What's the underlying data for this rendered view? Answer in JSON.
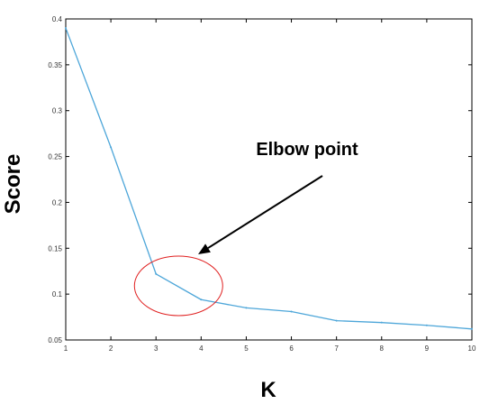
{
  "chart_data": {
    "type": "line",
    "title": "",
    "xlabel": "K",
    "ylabel": "Score",
    "x": [
      1,
      2,
      3,
      4,
      5,
      6,
      7,
      8,
      9,
      10
    ],
    "series": [
      {
        "values": [
          0.39,
          0.26,
          0.122,
          0.094,
          0.085,
          0.081,
          0.071,
          0.069,
          0.066,
          0.062
        ]
      }
    ],
    "xlim": [
      1,
      10
    ],
    "ylim": [
      0.05,
      0.4
    ],
    "xticks": [
      1,
      2,
      3,
      4,
      5,
      6,
      7,
      8,
      9,
      10
    ],
    "xtick_labels": [
      "1",
      "2",
      "3",
      "4",
      "5",
      "6",
      "7",
      "8",
      "9",
      "10"
    ],
    "yticks": [
      0.05,
      0.1,
      0.15,
      0.2,
      0.25,
      0.3,
      0.35,
      0.4
    ],
    "ytick_labels": [
      "0.05",
      "0.1",
      "0.15",
      "0.2",
      "0.25",
      "0.3",
      "0.35",
      "0.4"
    ],
    "grid": false,
    "legend": "none",
    "colors": {
      "line": "#4da6d9",
      "ellipse": "#e02020",
      "arrow": "#000000",
      "axes": "#000000"
    },
    "annotation": {
      "text": "Elbow point",
      "highlight_x": 3.5,
      "highlight_y": 0.109
    }
  }
}
